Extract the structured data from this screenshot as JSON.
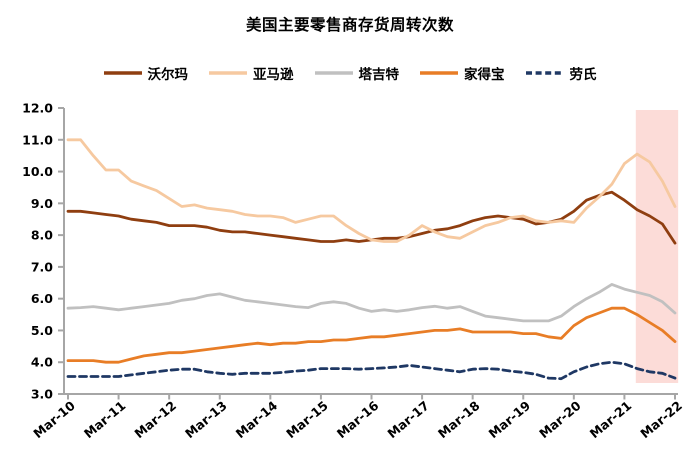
{
  "chart_data": {
    "type": "line",
    "title": "美国主要零售商存货周转次数",
    "x_tick_labels": [
      "Mar-10",
      "Mar-11",
      "Mar-12",
      "Mar-13",
      "Mar-14",
      "Mar-15",
      "Mar-16",
      "Mar-17",
      "Mar-18",
      "Mar-19",
      "Mar-20",
      "Mar-21",
      "Mar-22"
    ],
    "points_per_year": 4,
    "ylim": [
      3.0,
      12.0
    ],
    "y_tick_step": 1.0,
    "axis_color": "#a6a6a6",
    "text_color": "#000000",
    "legend_position": "top",
    "grid": false,
    "highlight": {
      "start_index": 44.9,
      "end_index": 48.25,
      "color": "#fcdcd8"
    },
    "series": [
      {
        "id": "walmart",
        "name": "沃尔玛",
        "color": "#8f3e10",
        "dash": false,
        "values": [
          8.75,
          8.75,
          8.7,
          8.65,
          8.6,
          8.5,
          8.45,
          8.4,
          8.3,
          8.3,
          8.3,
          8.25,
          8.15,
          8.1,
          8.1,
          8.05,
          8.0,
          7.95,
          7.9,
          7.85,
          7.8,
          7.8,
          7.85,
          7.8,
          7.85,
          7.9,
          7.9,
          7.95,
          8.05,
          8.15,
          8.2,
          8.3,
          8.45,
          8.55,
          8.6,
          8.55,
          8.5,
          8.35,
          8.4,
          8.5,
          8.75,
          9.1,
          9.25,
          9.35,
          9.1,
          8.8,
          8.6,
          8.35,
          7.75
        ]
      },
      {
        "id": "amazon",
        "name": "亚马逊",
        "color": "#f6c9a0",
        "dash": false,
        "values": [
          11.0,
          11.0,
          10.5,
          10.05,
          10.05,
          9.7,
          9.55,
          9.4,
          9.15,
          8.9,
          8.95,
          8.85,
          8.8,
          8.75,
          8.65,
          8.6,
          8.6,
          8.55,
          8.4,
          8.5,
          8.6,
          8.6,
          8.3,
          8.05,
          7.85,
          7.8,
          7.8,
          8.0,
          8.3,
          8.1,
          7.95,
          7.9,
          8.1,
          8.3,
          8.4,
          8.55,
          8.6,
          8.45,
          8.4,
          8.45,
          8.4,
          8.85,
          9.2,
          9.6,
          10.25,
          10.55,
          10.3,
          9.7,
          8.9
        ]
      },
      {
        "id": "target",
        "name": "塔吉特",
        "color": "#c0c0c0",
        "dash": false,
        "values": [
          5.7,
          5.72,
          5.75,
          5.7,
          5.65,
          5.7,
          5.75,
          5.8,
          5.85,
          5.95,
          6.0,
          6.1,
          6.15,
          6.05,
          5.95,
          5.9,
          5.85,
          5.8,
          5.75,
          5.72,
          5.85,
          5.9,
          5.85,
          5.7,
          5.6,
          5.65,
          5.6,
          5.65,
          5.72,
          5.76,
          5.7,
          5.75,
          5.6,
          5.45,
          5.4,
          5.35,
          5.3,
          5.3,
          5.3,
          5.45,
          5.75,
          6.0,
          6.2,
          6.45,
          6.3,
          6.2,
          6.1,
          5.9,
          5.55
        ]
      },
      {
        "id": "home-depot",
        "name": "家得宝",
        "color": "#e87d26",
        "dash": false,
        "values": [
          4.05,
          4.05,
          4.05,
          4.0,
          4.0,
          4.1,
          4.2,
          4.25,
          4.3,
          4.3,
          4.35,
          4.4,
          4.45,
          4.5,
          4.55,
          4.6,
          4.55,
          4.6,
          4.6,
          4.65,
          4.65,
          4.7,
          4.7,
          4.75,
          4.8,
          4.8,
          4.85,
          4.9,
          4.95,
          5.0,
          5.0,
          5.05,
          4.95,
          4.95,
          4.95,
          4.95,
          4.9,
          4.9,
          4.8,
          4.75,
          5.15,
          5.4,
          5.55,
          5.7,
          5.7,
          5.5,
          5.25,
          5.0,
          4.65
        ]
      },
      {
        "id": "lowes",
        "name": "劳氏",
        "color": "#1f3864",
        "dash": true,
        "values": [
          3.55,
          3.55,
          3.55,
          3.55,
          3.55,
          3.6,
          3.65,
          3.7,
          3.75,
          3.78,
          3.78,
          3.7,
          3.65,
          3.62,
          3.65,
          3.65,
          3.65,
          3.68,
          3.72,
          3.75,
          3.8,
          3.8,
          3.8,
          3.78,
          3.8,
          3.82,
          3.85,
          3.9,
          3.85,
          3.8,
          3.75,
          3.7,
          3.78,
          3.8,
          3.78,
          3.72,
          3.68,
          3.62,
          3.5,
          3.48,
          3.7,
          3.85,
          3.95,
          4.0,
          3.95,
          3.8,
          3.7,
          3.65,
          3.5
        ]
      }
    ]
  }
}
